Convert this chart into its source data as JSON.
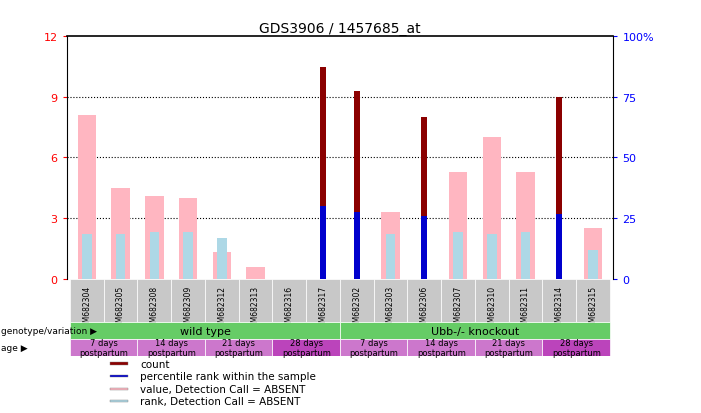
{
  "title": "GDS3906 / 1457685_at",
  "samples": [
    "GSM682304",
    "GSM682305",
    "GSM682308",
    "GSM682309",
    "GSM682312",
    "GSM682313",
    "GSM682316",
    "GSM682317",
    "GSM682302",
    "GSM682303",
    "GSM682306",
    "GSM682307",
    "GSM682310",
    "GSM682311",
    "GSM682314",
    "GSM682315"
  ],
  "count_red": [
    0,
    0,
    0,
    0,
    0,
    0,
    0,
    10.5,
    9.3,
    0,
    8.0,
    0,
    0,
    0,
    9.0,
    0
  ],
  "rank_blue": [
    0,
    0,
    0,
    0,
    0,
    0,
    0,
    3.6,
    3.3,
    0,
    3.1,
    0,
    0,
    0,
    3.2,
    0
  ],
  "value_pink": [
    8.1,
    4.5,
    4.1,
    4.0,
    1.3,
    0.6,
    0,
    0,
    0,
    3.3,
    0,
    5.3,
    7.0,
    5.3,
    0,
    2.5
  ],
  "rank_lightblue": [
    2.2,
    2.2,
    2.3,
    2.3,
    2.0,
    0,
    0,
    0,
    0,
    2.2,
    0,
    2.3,
    2.2,
    2.3,
    0,
    1.4
  ],
  "ylim": [
    0,
    12
  ],
  "y2lim": [
    0,
    100
  ],
  "yticks": [
    0,
    3,
    6,
    9,
    12
  ],
  "y2ticks": [
    0,
    25,
    50,
    75,
    100
  ],
  "color_red": "#8B0000",
  "color_blue": "#0000CD",
  "color_pink": "#FFB6C1",
  "color_lightblue": "#ADD8E6",
  "color_gray_bg": "#C8C8C8",
  "color_green": "#66CC66",
  "color_orchid": "#CC77CC",
  "color_violet": "#BB55BB",
  "legend_items": [
    {
      "label": "count",
      "color": "#8B0000"
    },
    {
      "label": "percentile rank within the sample",
      "color": "#0000CD"
    },
    {
      "label": "value, Detection Call = ABSENT",
      "color": "#FFB6C1"
    },
    {
      "label": "rank, Detection Call = ABSENT",
      "color": "#ADD8E6"
    }
  ],
  "age_labels": [
    "7 days\npostpartum",
    "14 days\npostpartum",
    "21 days\npostpartum",
    "28 days\npostpartum",
    "7 days\npostpartum",
    "14 days\npostpartum",
    "21 days\npostpartum",
    "28 days\npostpartum"
  ],
  "age_colors": [
    "#CC77CC",
    "#CC77CC",
    "#CC77CC",
    "#BB44BB",
    "#CC77CC",
    "#CC77CC",
    "#CC77CC",
    "#BB44BB"
  ]
}
